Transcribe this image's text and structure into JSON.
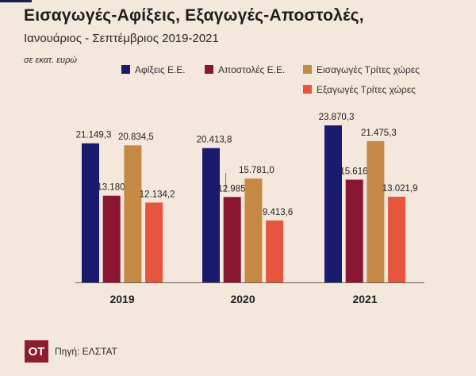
{
  "title": "Εισαγωγές-Αφίξεις, Εξαγωγές-Αποστολές,",
  "subtitle": "Ιανουάριος  - Σεπτέμβριος 2019-2021",
  "unit": "σε  εκατ. ευρώ",
  "logo_text": "OT",
  "source": "Πηγή: ΕΛΣΤΑΤ",
  "chart_data": {
    "type": "bar",
    "categories": [
      "2019",
      "2020",
      "2021"
    ],
    "series": [
      {
        "name": "Αφίξεις Ε.Ε.",
        "color": "#1a1a6e",
        "values": [
          21149.3,
          20413.8,
          23870.3
        ],
        "labels": [
          "21.149,3",
          "20.413,8",
          "23.870,3"
        ]
      },
      {
        "name": "Αποστολές Ε.Ε.",
        "color": "#8a1530",
        "values": [
          13180.1,
          12985.3,
          15616.0
        ],
        "labels": [
          "13.180,1",
          "12.985,3",
          "15.616,0"
        ]
      },
      {
        "name": "Εισαγωγές Τρίτες χώρες",
        "color": "#c48a45",
        "values": [
          20834.5,
          15781.0,
          21475.3
        ],
        "labels": [
          "20.834,5",
          "15.781,0",
          "21.475,3"
        ]
      },
      {
        "name": "Εξαγωγές Τρίτες χώρες",
        "color": "#e8553e",
        "values": [
          12134.2,
          9413.6,
          13021.9
        ],
        "labels": [
          "12.134,2",
          "9.413,6",
          "13.021,9"
        ]
      }
    ],
    "ylim": [
      0,
      24000
    ],
    "grid": false,
    "legend_position": "top-right"
  }
}
